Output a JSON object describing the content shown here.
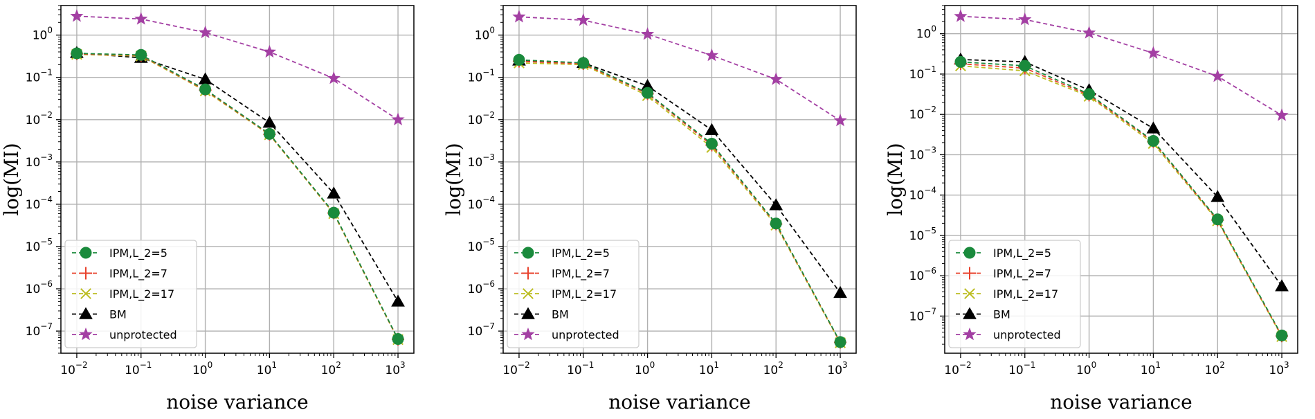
{
  "chart_data": [
    {
      "type": "line",
      "xlabel": "noise variance",
      "ylabel": "log(MI)",
      "xscale": "log",
      "yscale": "log",
      "xlim": [
        0.01,
        1000
      ],
      "ylim": [
        3e-08,
        5
      ],
      "grid": true,
      "legend_position": "lower-left",
      "x": [
        0.01,
        0.1,
        1,
        10,
        100,
        1000
      ],
      "series": [
        {
          "name": "IPM,L_2=5",
          "color": "#1a8a3c",
          "marker": "circle",
          "style": "dashed",
          "values": [
            0.37,
            0.34,
            0.052,
            0.0046,
            6.3e-05,
            6.5e-08
          ]
        },
        {
          "name": "IPM,L_2=7",
          "color": "#e8412b",
          "marker": "plus",
          "style": "dashed",
          "values": [
            0.36,
            0.33,
            0.05,
            0.0045,
            6.2e-05,
            6.4e-08
          ]
        },
        {
          "name": "IPM,L_2=17",
          "color": "#bcbd22",
          "marker": "x",
          "style": "dashed",
          "values": [
            0.35,
            0.32,
            0.048,
            0.0044,
            6e-05,
            6.3e-08
          ]
        },
        {
          "name": "BM",
          "color": "#000000",
          "marker": "triangle",
          "style": "dashed",
          "values": [
            0.38,
            0.29,
            0.09,
            0.0085,
            0.00018,
            5e-07
          ]
        },
        {
          "name": "unprotected",
          "color": "#a33fa3",
          "marker": "star",
          "style": "dashed",
          "values": [
            2.8,
            2.4,
            1.15,
            0.4,
            0.095,
            0.01
          ]
        }
      ]
    },
    {
      "type": "line",
      "xlabel": "noise variance",
      "ylabel": "log(MI)",
      "xscale": "log",
      "yscale": "log",
      "xlim": [
        0.01,
        1000
      ],
      "ylim": [
        3e-08,
        5
      ],
      "grid": true,
      "legend_position": "lower-left",
      "x": [
        0.01,
        0.1,
        1,
        10,
        100,
        1000
      ],
      "series": [
        {
          "name": "IPM,L_2=5",
          "color": "#1a8a3c",
          "marker": "circle",
          "style": "dashed",
          "values": [
            0.26,
            0.22,
            0.043,
            0.0027,
            3.5e-05,
            5.5e-08
          ]
        },
        {
          "name": "IPM,L_2=7",
          "color": "#e8412b",
          "marker": "plus",
          "style": "dashed",
          "values": [
            0.24,
            0.21,
            0.041,
            0.0025,
            3.4e-05,
            5.4e-08
          ]
        },
        {
          "name": "IPM,L_2=17",
          "color": "#bcbd22",
          "marker": "x",
          "style": "dashed",
          "values": [
            0.22,
            0.2,
            0.037,
            0.0022,
            3.2e-05,
            5.3e-08
          ]
        },
        {
          "name": "BM",
          "color": "#000000",
          "marker": "triangle",
          "style": "dashed",
          "values": [
            0.25,
            0.22,
            0.063,
            0.0057,
            9.5e-05,
            8e-07
          ]
        },
        {
          "name": "unprotected",
          "color": "#a33fa3",
          "marker": "star",
          "style": "dashed",
          "values": [
            2.7,
            2.25,
            1.05,
            0.33,
            0.09,
            0.0095
          ]
        }
      ]
    },
    {
      "type": "line",
      "xlabel": "noise variance",
      "ylabel": "log(MI)",
      "xscale": "log",
      "yscale": "log",
      "xlim": [
        0.01,
        1000
      ],
      "ylim": [
        1.2e-08,
        5
      ],
      "grid": true,
      "legend_position": "lower-left",
      "x": [
        0.01,
        0.1,
        1,
        10,
        100,
        1000
      ],
      "series": [
        {
          "name": "IPM,L_2=5",
          "color": "#1a8a3c",
          "marker": "circle",
          "style": "dashed",
          "values": [
            0.2,
            0.16,
            0.032,
            0.0022,
            2.5e-05,
            3.3e-08
          ]
        },
        {
          "name": "IPM,L_2=7",
          "color": "#e8412b",
          "marker": "plus",
          "style": "dashed",
          "values": [
            0.18,
            0.14,
            0.03,
            0.0021,
            2.4e-05,
            3.2e-08
          ]
        },
        {
          "name": "IPM,L_2=17",
          "color": "#bcbd22",
          "marker": "x",
          "style": "dashed",
          "values": [
            0.16,
            0.12,
            0.028,
            0.0019,
            2.3e-05,
            3.1e-08
          ]
        },
        {
          "name": "BM",
          "color": "#000000",
          "marker": "triangle",
          "style": "dashed",
          "values": [
            0.23,
            0.2,
            0.04,
            0.0045,
            9e-05,
            5.5e-07
          ]
        },
        {
          "name": "unprotected",
          "color": "#a33fa3",
          "marker": "star",
          "style": "dashed",
          "values": [
            2.7,
            2.25,
            1.05,
            0.33,
            0.088,
            0.0095
          ]
        }
      ]
    }
  ]
}
